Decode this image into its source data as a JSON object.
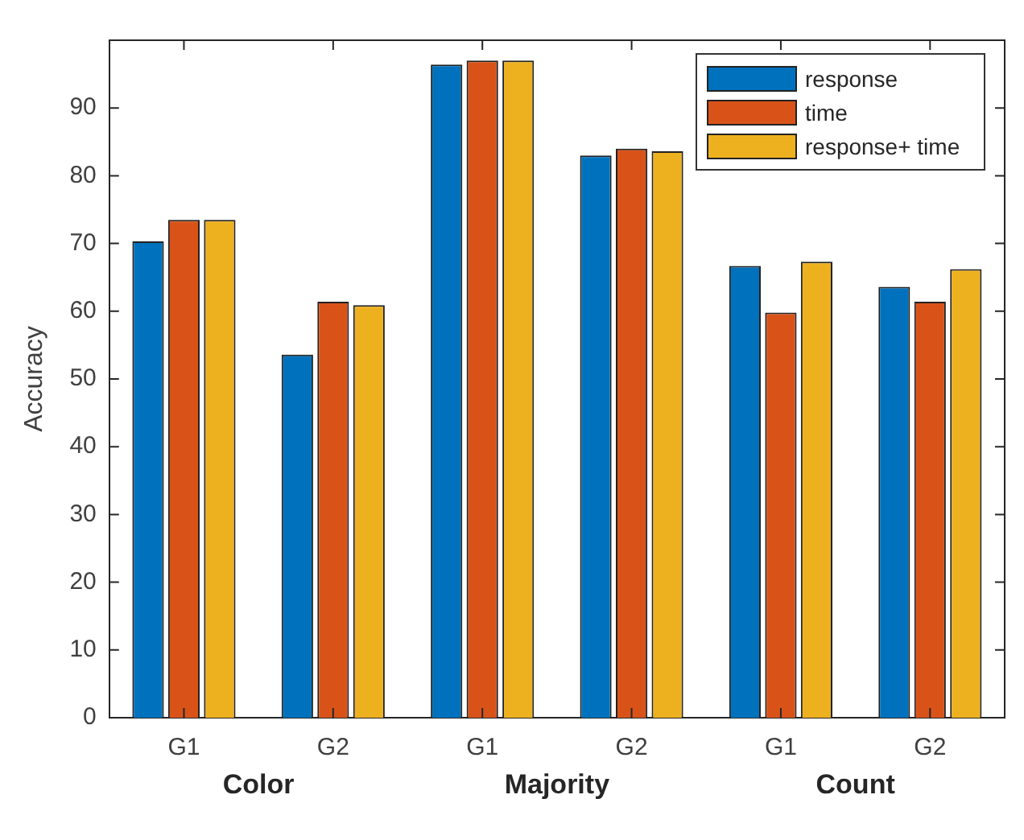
{
  "chart_data": {
    "type": "bar",
    "ylabel": "Accuracy",
    "categories": [
      "G1",
      "G2",
      "G1",
      "G2",
      "G1",
      "G2"
    ],
    "series": [
      {
        "name": "response",
        "color": "#0072bd",
        "values": [
          70.3,
          53.6,
          96.4,
          83,
          66.7,
          63.6
        ]
      },
      {
        "name": "time",
        "color": "#d95319",
        "values": [
          73.5,
          61.4,
          97,
          84,
          59.8,
          61.4
        ]
      },
      {
        "name": "response+ time",
        "color": "#edb120",
        "values": [
          73.5,
          60.9,
          97,
          83.6,
          67.3,
          66.2
        ]
      }
    ],
    "ylim": [
      0,
      100
    ],
    "yticks": [
      0,
      10,
      20,
      30,
      40,
      50,
      60,
      70,
      80,
      90
    ],
    "grid": false,
    "legend": "top right",
    "annotations": [
      "Color",
      "Majority",
      "Count"
    ]
  }
}
